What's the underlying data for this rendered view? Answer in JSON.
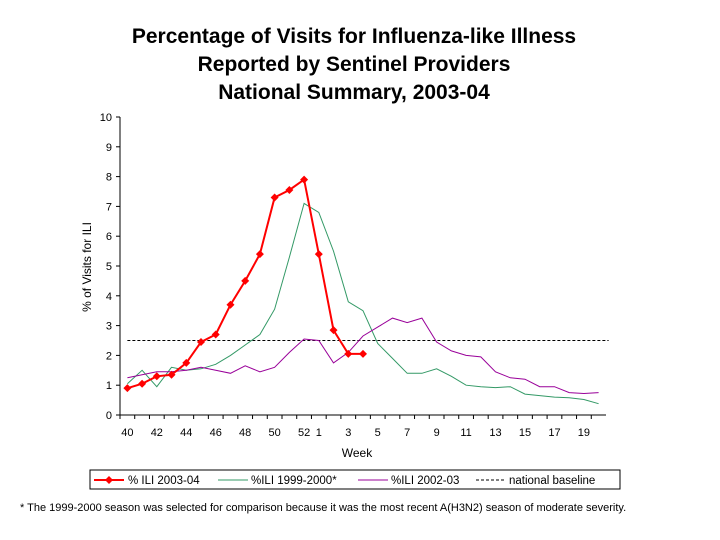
{
  "chart_data": {
    "type": "line",
    "title_lines": [
      "Percentage of Visits for Influenza-like Illness",
      "Reported by Sentinel Providers",
      "National Summary, 2003-04"
    ],
    "xlabel": "Week",
    "ylabel": "% of Visits for ILI",
    "ylim": [
      0,
      10
    ],
    "yticks": [
      "0",
      "1",
      "2",
      "3",
      "4",
      "5",
      "6",
      "7",
      "8",
      "9",
      "10"
    ],
    "weeks": [
      40,
      41,
      42,
      43,
      44,
      45,
      46,
      47,
      48,
      49,
      50,
      51,
      52,
      1,
      2,
      3,
      4,
      5,
      6,
      7,
      8,
      9,
      10,
      11,
      12,
      13,
      14,
      15,
      16,
      17,
      18,
      19,
      20
    ],
    "xtick_labels": [
      "40",
      "42",
      "44",
      "46",
      "48",
      "50",
      "52",
      "1",
      "3",
      "5",
      "7",
      "9",
      "11",
      "13",
      "15",
      "17",
      "19"
    ],
    "series": [
      {
        "name": "% ILI 2003-04",
        "color": "#ff0000",
        "marker": "diamond",
        "values": [
          0.9,
          1.05,
          1.3,
          1.35,
          1.75,
          2.45,
          2.7,
          3.7,
          4.5,
          5.4,
          7.3,
          7.55,
          7.9,
          5.4,
          2.85,
          2.05,
          2.05
        ]
      },
      {
        "name": "%ILI 1999-2000*",
        "color": "#339966",
        "marker": "none",
        "values": [
          1.05,
          1.5,
          0.95,
          1.6,
          1.5,
          1.55,
          1.7,
          2.0,
          2.35,
          2.7,
          3.55,
          5.3,
          7.1,
          6.8,
          5.5,
          3.8,
          3.5,
          2.4,
          1.9,
          1.4,
          1.4,
          1.55,
          1.3,
          1.0,
          0.95,
          0.92,
          0.95,
          0.7,
          0.65,
          0.6,
          0.58,
          0.52,
          0.38
        ]
      },
      {
        "name": "%ILI 2002-03",
        "color": "#990099",
        "marker": "none",
        "values": [
          1.25,
          1.35,
          1.45,
          1.45,
          1.5,
          1.6,
          1.5,
          1.4,
          1.65,
          1.45,
          1.6,
          2.1,
          2.55,
          2.5,
          1.75,
          2.1,
          2.65,
          2.95,
          3.25,
          3.1,
          3.25,
          2.45,
          2.15,
          2.0,
          1.95,
          1.45,
          1.25,
          1.2,
          0.95,
          0.95,
          0.75,
          0.72,
          0.75
        ]
      }
    ],
    "baseline": {
      "name": "national baseline",
      "value": 2.5,
      "color": "#000000"
    },
    "grid": false,
    "legend_position": "bottom"
  },
  "footnote": "* The 1999-2000 season was selected for comparison because it was the most recent A(H3N2) season of moderate severity."
}
